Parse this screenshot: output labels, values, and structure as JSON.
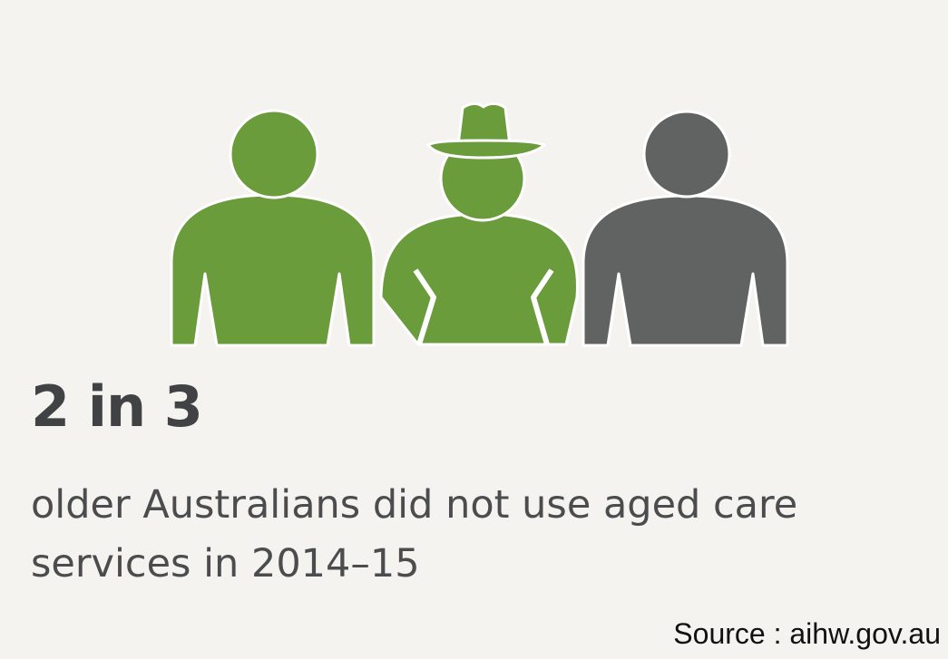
{
  "infographic": {
    "headline": "2 in 3",
    "description": "older Australians did not use aged care services in 2014–15",
    "source": "Source : aihw.gov.au"
  },
  "figures": [
    {
      "icon": "person-icon",
      "highlighted": true
    },
    {
      "icon": "person-with-hat-icon",
      "highlighted": true
    },
    {
      "icon": "person-icon",
      "highlighted": false
    }
  ],
  "colors": {
    "background": "#f4f3ef",
    "highlight": "#6a9c3c",
    "muted": "#606362",
    "text": "#404244"
  }
}
